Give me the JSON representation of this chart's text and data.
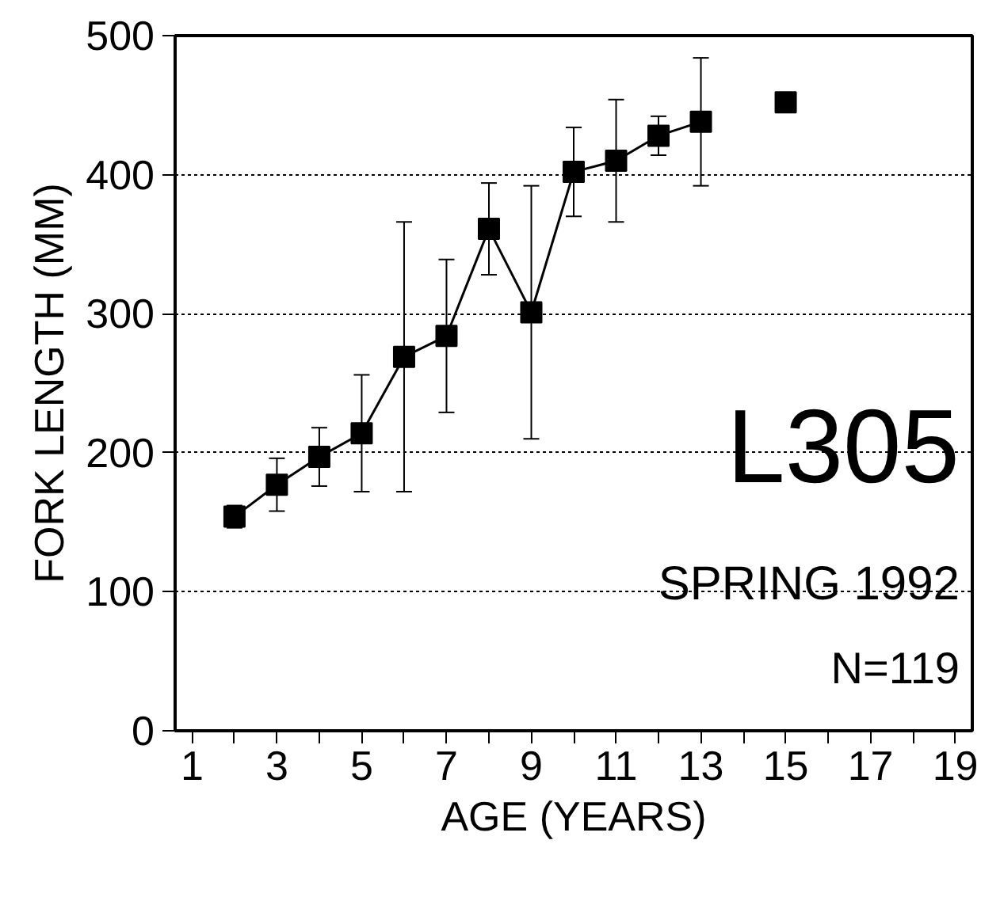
{
  "chart_data": {
    "type": "line",
    "xlabel": "AGE (YEARS)",
    "ylabel": "FORK LENGTH (MM)",
    "x": [
      2,
      3,
      4,
      5,
      6,
      7,
      8,
      9,
      10,
      11,
      12,
      13
    ],
    "series": [
      {
        "color": "#000000",
        "values": [
          154,
          177,
          197,
          214,
          269,
          284,
          361,
          301,
          402,
          410,
          428,
          438
        ],
        "errors": [
          8,
          19,
          21,
          42,
          97,
          55,
          33,
          91,
          32,
          44,
          14,
          46
        ]
      },
      {
        "type": "scatter",
        "color": "#000000",
        "x": [
          15
        ],
        "values": [
          452
        ]
      }
    ],
    "marker": "square",
    "line_style": "solid",
    "grid": "y",
    "xlim": [
      0.6,
      19.4
    ],
    "ylim": [
      0,
      500
    ],
    "xticks": [
      1,
      {
        "value": 2,
        "label": null
      },
      3,
      {
        "value": 4,
        "label": null
      },
      5,
      {
        "value": 6,
        "label": null
      },
      7,
      {
        "value": 8,
        "label": null
      },
      9,
      {
        "value": 10,
        "label": null
      },
      11,
      {
        "value": 12,
        "label": null
      },
      13,
      {
        "value": 14,
        "label": null
      },
      15,
      {
        "value": 16,
        "label": null
      },
      17,
      {
        "value": 18,
        "label": null
      },
      19
    ],
    "yticks": [
      0,
      100,
      200,
      300,
      400,
      500
    ],
    "annotations": [
      "L305",
      "SPRING 1992",
      "N=119"
    ]
  }
}
